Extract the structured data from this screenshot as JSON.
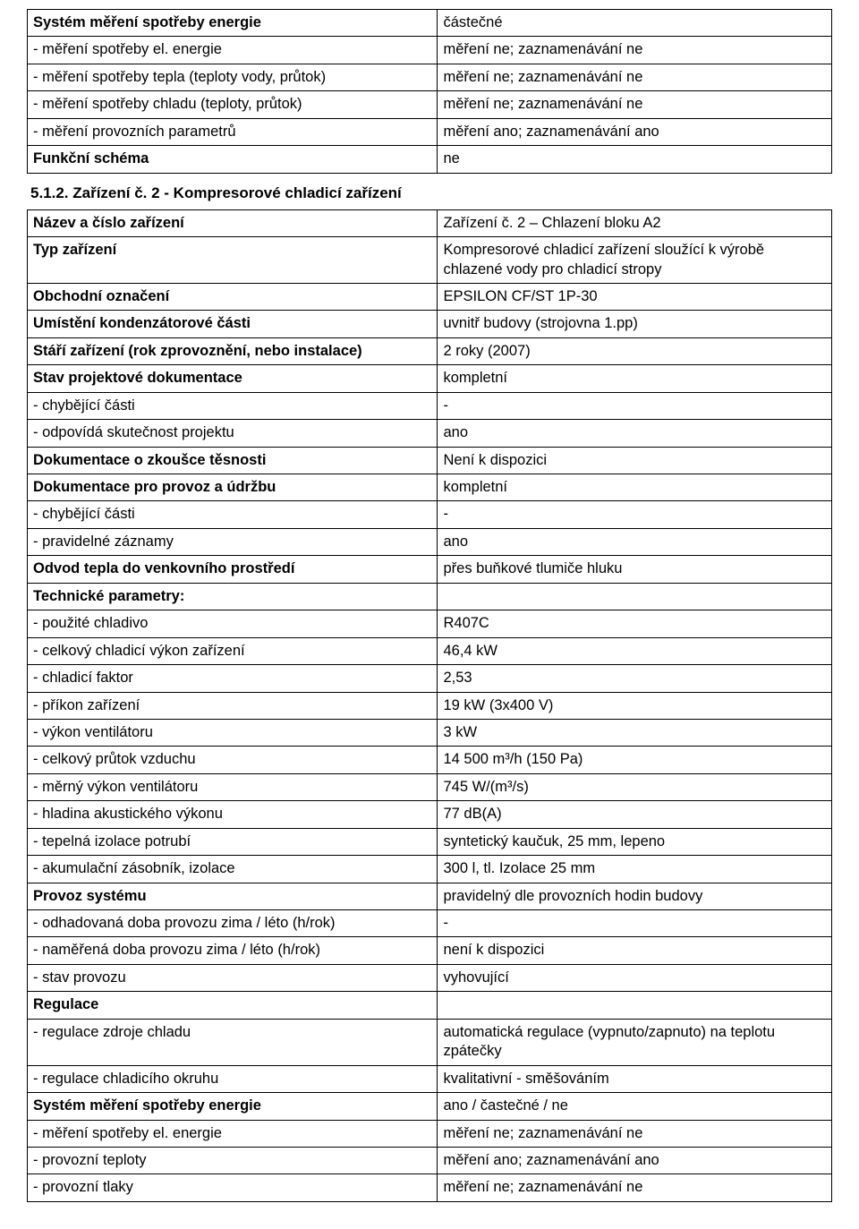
{
  "table1": {
    "rows": [
      {
        "label": "Systém měření spotřeby energie",
        "value": "částečné",
        "labelBold": true,
        "valueBold": false
      },
      {
        "label": "- měření spotřeby el. energie",
        "value": "měření ne; zaznamenávání ne",
        "labelBold": false,
        "valueBold": false
      },
      {
        "label": "- měření spotřeby tepla (teploty vody, průtok)",
        "value": "měření ne; zaznamenávání ne",
        "labelBold": false,
        "valueBold": false
      },
      {
        "label": "- měření spotřeby chladu (teploty, průtok)",
        "value": "měření ne; zaznamenávání ne",
        "labelBold": false,
        "valueBold": false
      },
      {
        "label": "- měření provozních parametrů",
        "value": "měření ano; zaznamenávání ano",
        "labelBold": false,
        "valueBold": false
      },
      {
        "label": "Funkční schéma",
        "value": "ne",
        "labelBold": true,
        "valueBold": false
      }
    ]
  },
  "sectionHeading": "5.1.2.    Zařízení č. 2 - Kompresorové chladicí zařízení",
  "table2": {
    "rows": [
      {
        "label": "Název a číslo zařízení",
        "value": "Zařízení č. 2 – Chlazení bloku A2",
        "labelBold": true
      },
      {
        "label": "Typ zařízení",
        "value": "Kompresorové chladicí zařízení sloužící k výrobě chlazené vody pro chladicí stropy",
        "labelBold": true
      },
      {
        "label": "Obchodní označení",
        "value": "EPSILON CF/ST 1P-30",
        "labelBold": true
      },
      {
        "label": "Umístění kondenzátorové části",
        "value": "uvnitř budovy (strojovna 1.pp)",
        "labelBold": true
      },
      {
        "label": "Stáří zařízení (rok zprovoznění, nebo instalace)",
        "value": "2 roky (2007)",
        "labelBold": true
      },
      {
        "label": "Stav projektové dokumentace",
        "value": "kompletní",
        "labelBold": true
      },
      {
        "label": "- chybějící části",
        "value": "-",
        "labelBold": false
      },
      {
        "label": "- odpovídá skutečnost projektu",
        "value": "ano",
        "labelBold": false
      },
      {
        "label": "Dokumentace o zkoušce těsnosti",
        "value": "Není k dispozici",
        "labelBold": true
      },
      {
        "label": "Dokumentace pro provoz a údržbu",
        "value": "kompletní",
        "labelBold": true
      },
      {
        "label": "- chybějící části",
        "value": "-",
        "labelBold": false
      },
      {
        "label": "- pravidelné záznamy",
        "value": "ano",
        "labelBold": false
      },
      {
        "label": "Odvod tepla do venkovního prostředí",
        "value": "přes buňkové tlumiče hluku",
        "labelBold": true
      },
      {
        "label": "Technické parametry:",
        "value": "",
        "labelBold": true
      },
      {
        "label": "- použité chladivo",
        "value": "R407C",
        "labelBold": false
      },
      {
        "label": "- celkový chladicí výkon zařízení",
        "value": "46,4 kW",
        "labelBold": false
      },
      {
        "label": "- chladicí faktor",
        "value": "2,53",
        "labelBold": false
      },
      {
        "label": "- příkon zařízení",
        "value": "19 kW (3x400 V)",
        "labelBold": false
      },
      {
        "label": "- výkon ventilátoru",
        "value": "3 kW",
        "labelBold": false
      },
      {
        "label": "- celkový průtok vzduchu",
        "value": "14 500 m³/h (150 Pa)",
        "labelBold": false
      },
      {
        "label": "- měrný výkon ventilátoru",
        "value": "745 W/(m³/s)",
        "labelBold": false
      },
      {
        "label": "- hladina akustického výkonu",
        "value": "77 dB(A)",
        "labelBold": false
      },
      {
        "label": "- tepelná izolace potrubí",
        "value": "syntetický kaučuk, 25 mm, lepeno",
        "labelBold": false
      },
      {
        "label": "- akumulační zásobník, izolace",
        "value": "300 l, tl. Izolace 25 mm",
        "labelBold": false
      },
      {
        "label": "Provoz systému",
        "value": "pravidelný dle provozních hodin budovy",
        "labelBold": true
      },
      {
        "label": "- odhadovaná doba provozu zima / léto (h/rok)",
        "value": "-",
        "labelBold": false
      },
      {
        "label": "- naměřená doba provozu zima / léto (h/rok)",
        "value": "není k dispozici",
        "labelBold": false
      },
      {
        "label": "- stav provozu",
        "value": "vyhovující",
        "labelBold": false
      },
      {
        "label": "Regulace",
        "value": "",
        "labelBold": true
      },
      {
        "label": "- regulace zdroje chladu",
        "value": "automatická regulace (vypnuto/zapnuto) na teplotu zpátečky",
        "labelBold": false
      },
      {
        "label": "- regulace chladicího okruhu",
        "value": "kvalitativní - směšováním",
        "labelBold": false
      },
      {
        "label": "Systém měření spotřeby energie",
        "value": "ano / častečné / ne",
        "labelBold": true
      },
      {
        "label": "- měření spotřeby el. energie",
        "value": "měření ne; zaznamenávání ne",
        "labelBold": false
      },
      {
        "label": "- provozní teploty",
        "value": "měření ano; zaznamenávání ano",
        "labelBold": false
      },
      {
        "label": "- provozní tlaky",
        "value": "měření ne; zaznamenávání ne",
        "labelBold": false
      }
    ]
  }
}
